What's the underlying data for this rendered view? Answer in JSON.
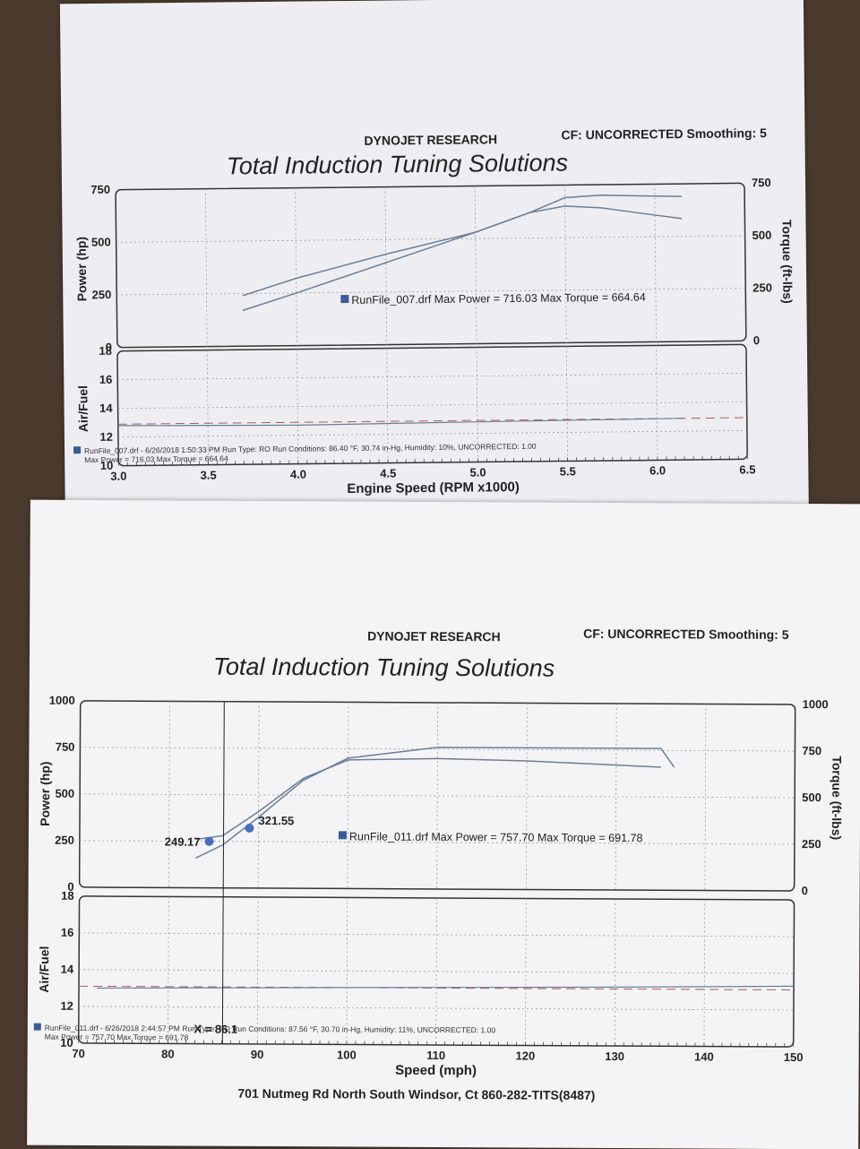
{
  "sheets": [
    {
      "company": "DYNOJET RESEARCH",
      "settings": "CF: UNCORRECTED  Smoothing: 5",
      "title": "Total Induction Tuning Solutions",
      "legend": "RunFile_007.drf Max Power = 716.03    Max Torque = 664.64",
      "run_info_line1": "RunFile_007.drf - 6/26/2018 1:50:33 PM  Run Type: RO  Run Conditions: 86.40 °F, 30.74 in-Hg,  Humidity:  10%, UNCORRECTED: 1.00",
      "run_info_line2": "Max Power = 716.03  Max Torque = 664.64"
    },
    {
      "company": "DYNOJET RESEARCH",
      "settings": "CF: UNCORRECTED  Smoothing: 5",
      "title": "Total Induction Tuning Solutions",
      "legend": "RunFile_011.drf Max Power = 757.70    Max Torque = 691.78",
      "run_info_line1": "RunFile_011.drf - 6/26/2018 2:44:57 PM  Run Type: RO  Run Conditions: 87.56 °F, 30.70 in-Hg,  Humidity:  11%, UNCORRECTED: 1.00",
      "run_info_line2": "Max Power = 757.70  Max Torque = 691.78",
      "cursor_label": "X = 86.1",
      "footer": "701 Nutmeg Rd North South Windsor, Ct 860-282-TITS(8487)"
    }
  ],
  "chart_data": [
    {
      "type": "line",
      "xlabel": "Engine Speed (RPM x1000)",
      "ylabel": "Power (hp)",
      "y2label": "Torque (ft-lbs)",
      "xlim": [
        3.0,
        6.5
      ],
      "ylim": [
        0,
        750
      ],
      "y2lim": [
        0,
        750
      ],
      "xticks": [
        "3.0",
        "3.5",
        "4.0",
        "4.5",
        "5.0",
        "5.5",
        "6.0",
        "6.5"
      ],
      "yticks": [
        "0",
        "250",
        "500",
        "750"
      ],
      "y2ticks": [
        "0",
        "250",
        "500",
        "750"
      ],
      "grid": true,
      "series": [
        {
          "name": "Power",
          "color": "#6a7f98",
          "x": [
            3.7,
            4.0,
            4.5,
            5.0,
            5.3,
            5.5,
            5.7,
            5.9,
            6.15
          ],
          "y": [
            170,
            250,
            390,
            530,
            620,
            690,
            700,
            695,
            690
          ]
        },
        {
          "name": "Torque",
          "color": "#6a7f98",
          "x": [
            3.7,
            4.0,
            4.5,
            5.0,
            5.3,
            5.5,
            5.7,
            5.9,
            6.15
          ],
          "y": [
            240,
            320,
            430,
            530,
            620,
            650,
            640,
            615,
            585
          ]
        }
      ],
      "af": {
        "ylabel": "Air/Fuel",
        "ylim": [
          10,
          18
        ],
        "yticks": [
          "10",
          "12",
          "14",
          "16",
          "18"
        ],
        "target": 12.9,
        "curve": [
          [
            3.0,
            12.8
          ],
          [
            4.0,
            12.7
          ],
          [
            5.0,
            12.8
          ],
          [
            6.15,
            12.9
          ]
        ]
      }
    },
    {
      "type": "line",
      "xlabel": "Speed (mph)",
      "ylabel": "Power (hp)",
      "y2label": "Torque (ft-lbs)",
      "xlim": [
        70,
        150
      ],
      "ylim": [
        0,
        1000
      ],
      "y2lim": [
        0,
        1000
      ],
      "xticks": [
        "70",
        "80",
        "90",
        "100",
        "110",
        "120",
        "130",
        "140",
        "150"
      ],
      "yticks": [
        "0",
        "250",
        "500",
        "750",
        "1000"
      ],
      "y2ticks": [
        "0",
        "250",
        "500",
        "750",
        "1000"
      ],
      "grid": true,
      "annotations": [
        {
          "x": 84.5,
          "y": 249.17,
          "label": "249.17"
        },
        {
          "x": 89.0,
          "y": 321.55,
          "label": "321.55"
        }
      ],
      "series": [
        {
          "name": "Power",
          "color": "#6a7f98",
          "x": [
            83,
            86,
            90,
            95,
            100,
            110,
            120,
            130,
            135,
            136.5
          ],
          "y": [
            160,
            230,
            380,
            580,
            700,
            760,
            760,
            760,
            760,
            660
          ]
        },
        {
          "name": "Torque",
          "color": "#6a7f98",
          "x": [
            83,
            86,
            90,
            95,
            100,
            110,
            120,
            130,
            135
          ],
          "y": [
            260,
            280,
            410,
            590,
            690,
            700,
            690,
            670,
            660
          ]
        }
      ],
      "af": {
        "ylabel": "Air/Fuel",
        "ylim": [
          10,
          18
        ],
        "yticks": [
          "10",
          "12",
          "14",
          "16",
          "18"
        ],
        "target": 13.1,
        "curve": [
          [
            72,
            13.0
          ],
          [
            100,
            13.1
          ],
          [
            130,
            13.2
          ],
          [
            150,
            13.3
          ]
        ]
      }
    }
  ]
}
